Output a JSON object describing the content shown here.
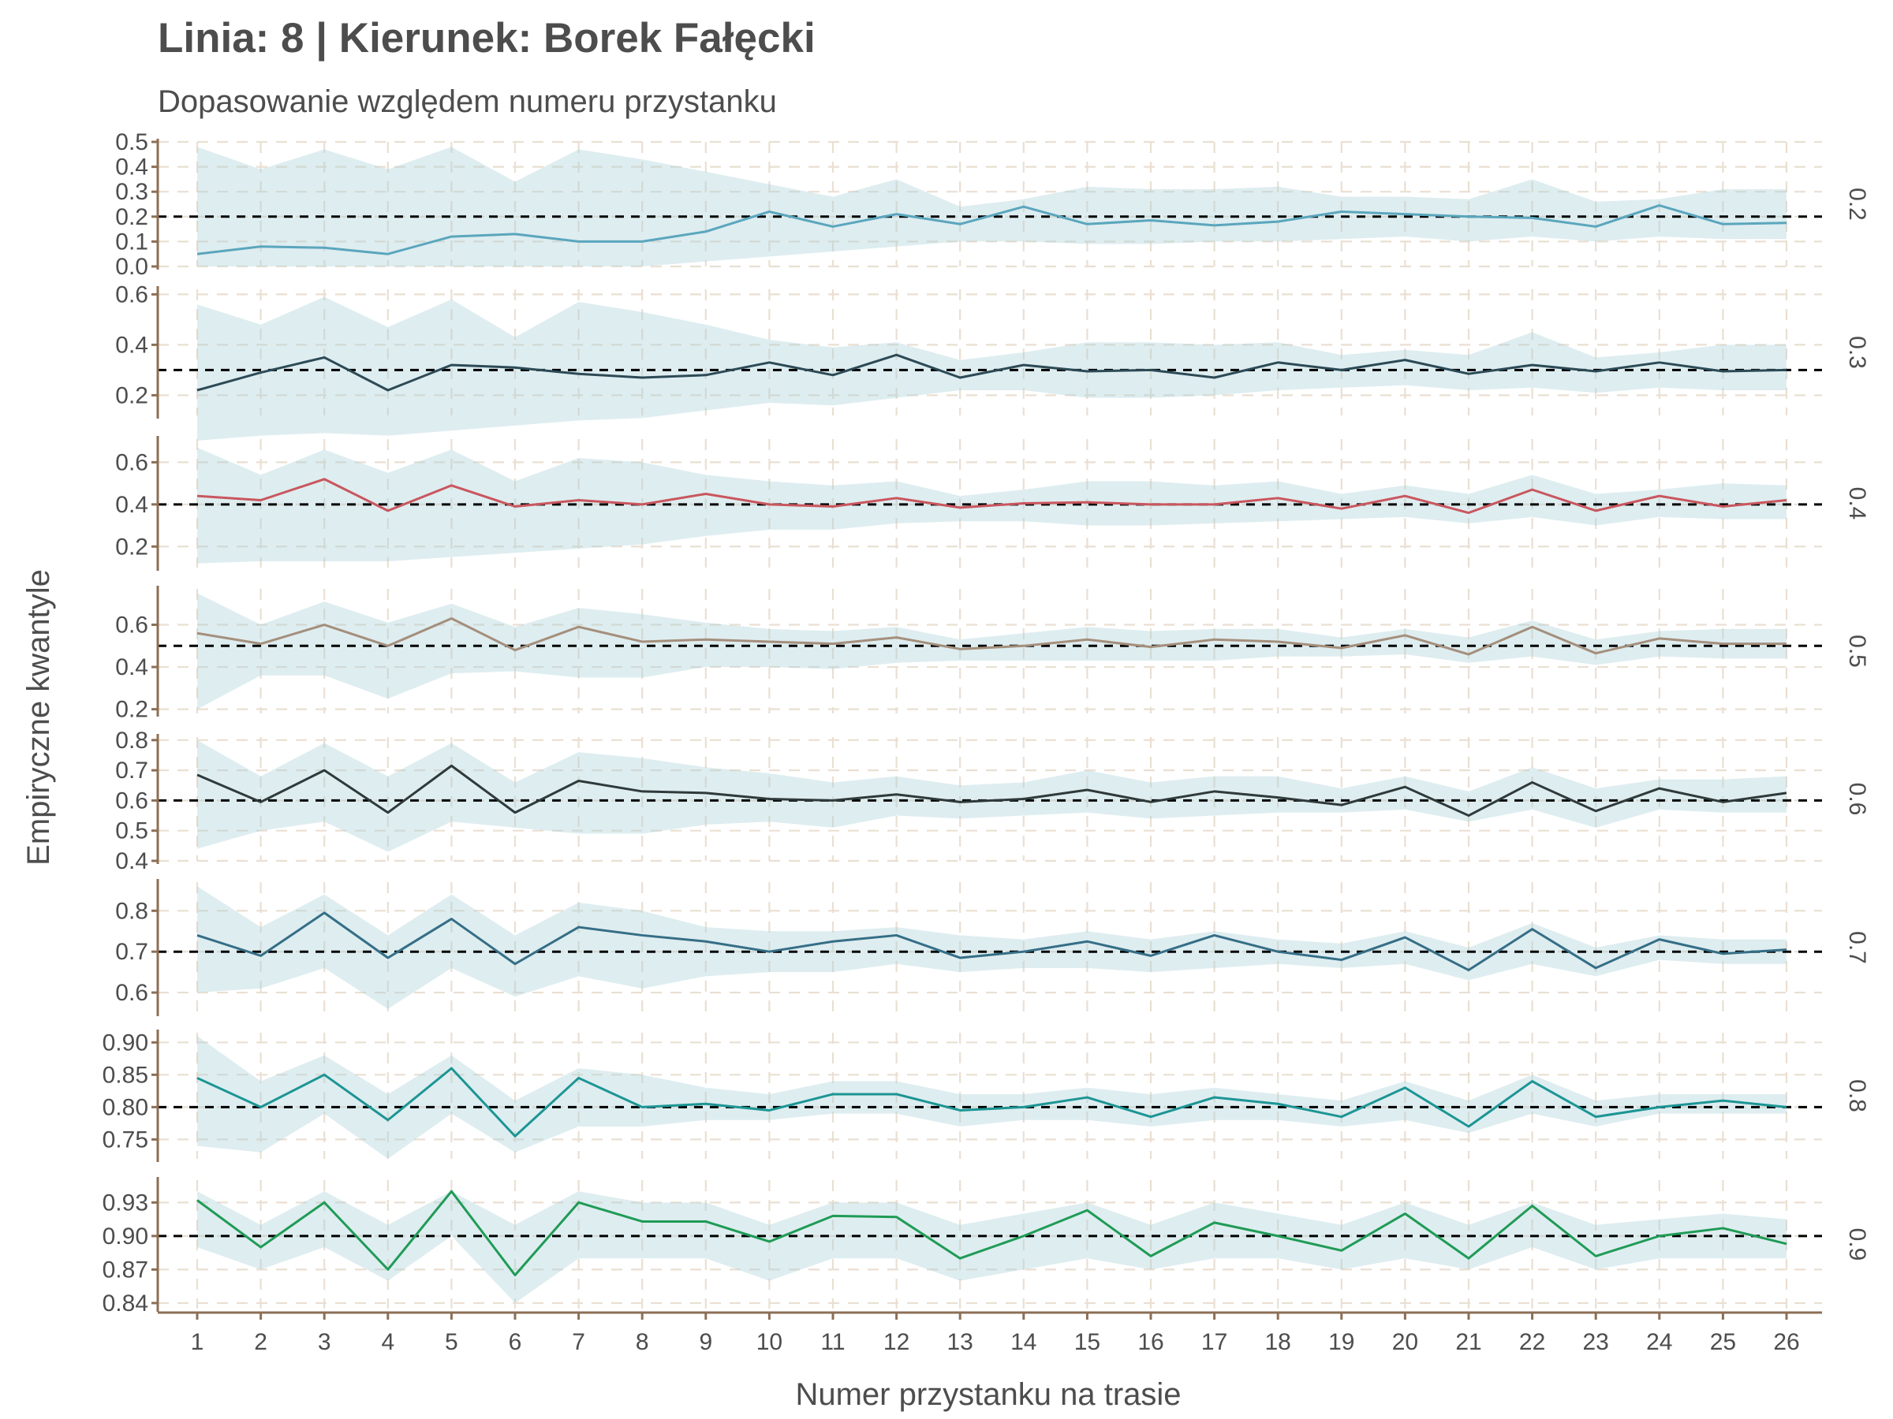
{
  "chart_data": {
    "type": "line",
    "title": "Linia: 8 | Kierunek: Borek Fałęcki",
    "subtitle": "Dopasowanie względem numeru przystanku",
    "xlabel": "Numer przystanku na trasie",
    "ylabel": "Empiryczne kwantyle",
    "x": [
      1,
      2,
      3,
      4,
      5,
      6,
      7,
      8,
      9,
      10,
      11,
      12,
      13,
      14,
      15,
      16,
      17,
      18,
      19,
      20,
      21,
      22,
      23,
      24,
      25,
      26
    ],
    "grid": true,
    "band_color": "#a9cfd8",
    "reference_line_style": "black dashed",
    "facets": [
      {
        "strip": "0.2",
        "reference": 0.2,
        "ylim": [
          0.0,
          0.5
        ],
        "ticks": [
          "0.0",
          "0.1",
          "0.2",
          "0.3",
          "0.4",
          "0.5"
        ],
        "tick_values": [
          0.0,
          0.1,
          0.2,
          0.3,
          0.4,
          0.5
        ],
        "color": "#5aa6bd",
        "values": [
          0.05,
          0.08,
          0.075,
          0.05,
          0.12,
          0.13,
          0.1,
          0.1,
          0.14,
          0.22,
          0.16,
          0.21,
          0.17,
          0.24,
          0.17,
          0.185,
          0.165,
          0.18,
          0.22,
          0.21,
          0.2,
          0.195,
          0.16,
          0.245,
          0.17,
          0.175
        ],
        "lower": [
          0.0,
          0.0,
          0.0,
          0.0,
          0.0,
          0.0,
          0.0,
          0.0,
          0.02,
          0.04,
          0.06,
          0.08,
          0.1,
          0.1,
          0.09,
          0.09,
          0.1,
          0.1,
          0.11,
          0.12,
          0.1,
          0.12,
          0.1,
          0.12,
          0.11,
          0.11
        ],
        "upper": [
          0.48,
          0.39,
          0.47,
          0.39,
          0.48,
          0.34,
          0.47,
          0.43,
          0.38,
          0.33,
          0.28,
          0.35,
          0.24,
          0.27,
          0.32,
          0.31,
          0.31,
          0.32,
          0.28,
          0.28,
          0.27,
          0.35,
          0.26,
          0.27,
          0.31,
          0.31
        ]
      },
      {
        "strip": "0.3",
        "reference": 0.3,
        "ylim": [
          0.12,
          0.62
        ],
        "ticks": [
          "0.2",
          "0.4",
          "0.6"
        ],
        "tick_values": [
          0.2,
          0.4,
          0.6
        ],
        "color": "#2c4a56",
        "values": [
          0.22,
          0.29,
          0.35,
          0.22,
          0.32,
          0.31,
          0.285,
          0.27,
          0.28,
          0.33,
          0.28,
          0.36,
          0.27,
          0.32,
          0.295,
          0.3,
          0.27,
          0.33,
          0.3,
          0.34,
          0.285,
          0.32,
          0.295,
          0.33,
          0.295,
          0.3
        ],
        "lower": [
          0.02,
          0.04,
          0.05,
          0.04,
          0.06,
          0.08,
          0.1,
          0.11,
          0.14,
          0.17,
          0.16,
          0.19,
          0.22,
          0.22,
          0.19,
          0.19,
          0.2,
          0.22,
          0.23,
          0.24,
          0.22,
          0.23,
          0.21,
          0.23,
          0.22,
          0.22
        ],
        "upper": [
          0.56,
          0.48,
          0.59,
          0.47,
          0.58,
          0.43,
          0.57,
          0.53,
          0.48,
          0.42,
          0.39,
          0.41,
          0.34,
          0.37,
          0.41,
          0.41,
          0.4,
          0.41,
          0.36,
          0.38,
          0.36,
          0.45,
          0.35,
          0.37,
          0.4,
          0.4
        ]
      },
      {
        "strip": "0.4",
        "reference": 0.4,
        "ylim": [
          0.1,
          0.71
        ],
        "ticks": [
          "0.2",
          "0.4",
          "0.6"
        ],
        "tick_values": [
          0.2,
          0.4,
          0.6
        ],
        "color": "#c9565e",
        "values": [
          0.44,
          0.42,
          0.52,
          0.37,
          0.49,
          0.39,
          0.42,
          0.4,
          0.45,
          0.4,
          0.39,
          0.43,
          0.385,
          0.405,
          0.41,
          0.4,
          0.4,
          0.43,
          0.38,
          0.44,
          0.36,
          0.47,
          0.37,
          0.44,
          0.39,
          0.42
        ],
        "lower": [
          0.12,
          0.13,
          0.13,
          0.13,
          0.15,
          0.17,
          0.19,
          0.21,
          0.25,
          0.28,
          0.28,
          0.31,
          0.32,
          0.32,
          0.3,
          0.3,
          0.31,
          0.32,
          0.33,
          0.34,
          0.31,
          0.34,
          0.3,
          0.34,
          0.33,
          0.33
        ],
        "upper": [
          0.67,
          0.54,
          0.66,
          0.55,
          0.66,
          0.51,
          0.62,
          0.6,
          0.54,
          0.51,
          0.49,
          0.51,
          0.44,
          0.47,
          0.51,
          0.51,
          0.49,
          0.51,
          0.45,
          0.49,
          0.45,
          0.54,
          0.45,
          0.47,
          0.5,
          0.49
        ]
      },
      {
        "strip": "0.5",
        "reference": 0.5,
        "ylim": [
          0.18,
          0.77
        ],
        "ticks": [
          "0.2",
          "0.4",
          "0.6"
        ],
        "tick_values": [
          0.2,
          0.4,
          0.6
        ],
        "color": "#a48f7c",
        "values": [
          0.56,
          0.51,
          0.6,
          0.5,
          0.63,
          0.48,
          0.59,
          0.52,
          0.53,
          0.52,
          0.51,
          0.54,
          0.485,
          0.5,
          0.53,
          0.495,
          0.53,
          0.52,
          0.49,
          0.55,
          0.46,
          0.59,
          0.465,
          0.535,
          0.51,
          0.51
        ],
        "lower": [
          0.2,
          0.36,
          0.36,
          0.25,
          0.37,
          0.38,
          0.35,
          0.35,
          0.4,
          0.4,
          0.39,
          0.42,
          0.43,
          0.43,
          0.43,
          0.43,
          0.43,
          0.45,
          0.45,
          0.46,
          0.42,
          0.45,
          0.41,
          0.45,
          0.44,
          0.44
        ],
        "upper": [
          0.75,
          0.6,
          0.71,
          0.61,
          0.7,
          0.59,
          0.68,
          0.65,
          0.61,
          0.58,
          0.57,
          0.59,
          0.53,
          0.56,
          0.59,
          0.57,
          0.58,
          0.58,
          0.54,
          0.58,
          0.54,
          0.62,
          0.53,
          0.57,
          0.58,
          0.58
        ]
      },
      {
        "strip": "0.6",
        "reference": 0.6,
        "ylim": [
          0.4,
          0.81
        ],
        "ticks": [
          "0.4",
          "0.5",
          "0.6",
          "0.7",
          "0.8"
        ],
        "tick_values": [
          0.4,
          0.5,
          0.6,
          0.7,
          0.8
        ],
        "color": "#2f3a3a",
        "values": [
          0.685,
          0.595,
          0.7,
          0.56,
          0.715,
          0.56,
          0.665,
          0.63,
          0.625,
          0.605,
          0.6,
          0.62,
          0.595,
          0.605,
          0.635,
          0.595,
          0.63,
          0.61,
          0.585,
          0.645,
          0.55,
          0.66,
          0.565,
          0.64,
          0.595,
          0.625
        ],
        "lower": [
          0.44,
          0.5,
          0.53,
          0.43,
          0.53,
          0.51,
          0.49,
          0.49,
          0.52,
          0.53,
          0.51,
          0.55,
          0.54,
          0.55,
          0.56,
          0.54,
          0.55,
          0.56,
          0.56,
          0.57,
          0.53,
          0.57,
          0.51,
          0.57,
          0.56,
          0.56
        ],
        "upper": [
          0.8,
          0.68,
          0.79,
          0.68,
          0.79,
          0.66,
          0.76,
          0.74,
          0.71,
          0.69,
          0.66,
          0.68,
          0.65,
          0.66,
          0.7,
          0.66,
          0.68,
          0.68,
          0.64,
          0.68,
          0.63,
          0.71,
          0.64,
          0.67,
          0.67,
          0.68
        ]
      },
      {
        "strip": "0.7",
        "reference": 0.7,
        "ylim": [
          0.55,
          0.87
        ],
        "ticks": [
          "0.6",
          "0.7",
          "0.8"
        ],
        "tick_values": [
          0.6,
          0.7,
          0.8
        ],
        "color": "#356e86",
        "values": [
          0.74,
          0.69,
          0.795,
          0.685,
          0.78,
          0.67,
          0.76,
          0.74,
          0.725,
          0.7,
          0.725,
          0.74,
          0.685,
          0.7,
          0.725,
          0.69,
          0.74,
          0.7,
          0.68,
          0.735,
          0.655,
          0.755,
          0.66,
          0.73,
          0.695,
          0.705
        ],
        "lower": [
          0.6,
          0.61,
          0.66,
          0.56,
          0.66,
          0.59,
          0.64,
          0.61,
          0.64,
          0.65,
          0.65,
          0.67,
          0.65,
          0.66,
          0.66,
          0.65,
          0.66,
          0.67,
          0.66,
          0.67,
          0.63,
          0.67,
          0.64,
          0.68,
          0.67,
          0.67
        ],
        "upper": [
          0.86,
          0.76,
          0.84,
          0.74,
          0.84,
          0.74,
          0.82,
          0.8,
          0.76,
          0.75,
          0.75,
          0.76,
          0.74,
          0.73,
          0.75,
          0.73,
          0.75,
          0.73,
          0.72,
          0.75,
          0.71,
          0.77,
          0.71,
          0.74,
          0.73,
          0.73
        ]
      },
      {
        "strip": "0.8",
        "reference": 0.8,
        "ylim": [
          0.72,
          0.915
        ],
        "ticks": [
          "0.75",
          "0.80",
          "0.85",
          "0.90"
        ],
        "tick_values": [
          0.75,
          0.8,
          0.85,
          0.9
        ],
        "color": "#1c9594",
        "values": [
          0.845,
          0.8,
          0.85,
          0.78,
          0.86,
          0.755,
          0.845,
          0.8,
          0.805,
          0.795,
          0.82,
          0.82,
          0.795,
          0.8,
          0.815,
          0.785,
          0.815,
          0.805,
          0.785,
          0.83,
          0.77,
          0.84,
          0.785,
          0.8,
          0.81,
          0.8
        ],
        "lower": [
          0.74,
          0.73,
          0.79,
          0.72,
          0.79,
          0.73,
          0.77,
          0.77,
          0.78,
          0.78,
          0.79,
          0.79,
          0.77,
          0.78,
          0.78,
          0.77,
          0.78,
          0.78,
          0.77,
          0.78,
          0.76,
          0.79,
          0.77,
          0.79,
          0.79,
          0.79
        ],
        "upper": [
          0.91,
          0.84,
          0.88,
          0.82,
          0.88,
          0.81,
          0.86,
          0.85,
          0.83,
          0.82,
          0.84,
          0.84,
          0.82,
          0.82,
          0.83,
          0.82,
          0.83,
          0.82,
          0.81,
          0.84,
          0.81,
          0.85,
          0.81,
          0.82,
          0.82,
          0.82
        ]
      },
      {
        "strip": "0.9",
        "reference": 0.9,
        "ylim": [
          0.835,
          0.95
        ],
        "ticks": [
          "0.84",
          "0.87",
          "0.90",
          "0.93"
        ],
        "tick_values": [
          0.84,
          0.87,
          0.9,
          0.93
        ],
        "color": "#1f9b56",
        "values": [
          0.932,
          0.89,
          0.93,
          0.87,
          0.94,
          0.865,
          0.93,
          0.913,
          0.913,
          0.895,
          0.918,
          0.917,
          0.88,
          0.9,
          0.923,
          0.882,
          0.912,
          0.9,
          0.887,
          0.92,
          0.88,
          0.927,
          0.882,
          0.9,
          0.907,
          0.893
        ],
        "lower": [
          0.89,
          0.87,
          0.89,
          0.86,
          0.9,
          0.84,
          0.88,
          0.88,
          0.88,
          0.86,
          0.88,
          0.88,
          0.86,
          0.87,
          0.88,
          0.87,
          0.88,
          0.88,
          0.87,
          0.88,
          0.87,
          0.89,
          0.87,
          0.88,
          0.88,
          0.88
        ],
        "upper": [
          0.94,
          0.91,
          0.94,
          0.91,
          0.94,
          0.91,
          0.94,
          0.93,
          0.93,
          0.91,
          0.93,
          0.93,
          0.91,
          0.92,
          0.93,
          0.91,
          0.93,
          0.92,
          0.91,
          0.93,
          0.91,
          0.93,
          0.91,
          0.915,
          0.92,
          0.915
        ]
      }
    ]
  }
}
